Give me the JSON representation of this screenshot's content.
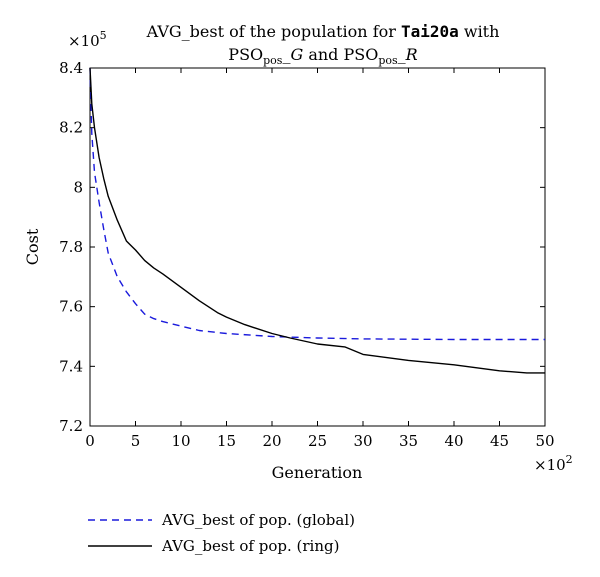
{
  "chart_data": {
    "type": "line",
    "title_line1": {
      "prefix": "AVG_best of the population for ",
      "dataset": "Tai20a",
      "suffix": " with"
    },
    "title_line2": {
      "a_base": "PSO",
      "a_sub": "pos",
      "a_tail": "_G",
      "joiner": " and ",
      "b_base": "PSO",
      "b_sub": "pos",
      "b_tail": "_R"
    },
    "xlabel": "Generation",
    "ylabel": "Cost",
    "x_multiplier": {
      "base": "×10",
      "exp": "2"
    },
    "y_multiplier": {
      "base": "×10",
      "exp": "5"
    },
    "xlim": [
      0,
      50
    ],
    "ylim": [
      7.2,
      8.4
    ],
    "x_ticks": [
      0,
      5,
      10,
      15,
      20,
      25,
      30,
      35,
      40,
      45,
      50
    ],
    "y_ticks": [
      7.2,
      7.4,
      7.6,
      7.8,
      8.0,
      8.2,
      8.4
    ],
    "y_tick_labels": [
      "7.2",
      "7.4",
      "7.6",
      "7.8",
      "8",
      "8.2",
      "8.4"
    ],
    "grid": false,
    "legend_position": "bottom-left, below plot",
    "series": [
      {
        "name": "AVG_best of pop. (global)",
        "color": "#1a1adc",
        "style": "dashed",
        "x": [
          0,
          0.2,
          0.5,
          1,
          1.5,
          2,
          3,
          4,
          5,
          6,
          7,
          8,
          10,
          12,
          15,
          20,
          25,
          30,
          40,
          50
        ],
        "y": [
          8.4,
          8.18,
          8.05,
          7.95,
          7.86,
          7.78,
          7.7,
          7.65,
          7.61,
          7.575,
          7.56,
          7.55,
          7.535,
          7.52,
          7.51,
          7.5,
          7.495,
          7.492,
          7.49,
          7.49
        ]
      },
      {
        "name": "AVG_best of pop. (ring)",
        "color": "#000000",
        "style": "solid",
        "x": [
          0,
          0.2,
          0.5,
          1,
          1.5,
          2,
          3,
          4,
          5,
          6,
          7,
          8,
          10,
          12,
          14,
          15,
          17,
          20,
          22,
          25,
          28,
          30,
          35,
          40,
          45,
          48,
          50
        ],
        "y": [
          8.4,
          8.28,
          8.2,
          8.1,
          8.03,
          7.97,
          7.89,
          7.82,
          7.79,
          7.755,
          7.73,
          7.71,
          7.665,
          7.62,
          7.58,
          7.565,
          7.54,
          7.51,
          7.495,
          7.475,
          7.465,
          7.44,
          7.42,
          7.405,
          7.385,
          7.378,
          7.378
        ]
      }
    ]
  }
}
